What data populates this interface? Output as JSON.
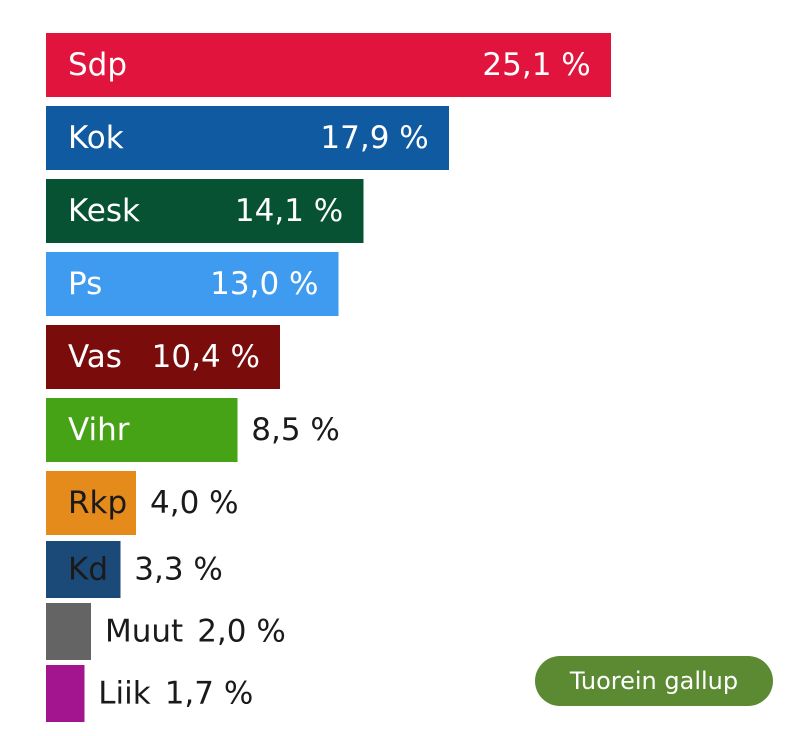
{
  "chart_data": {
    "type": "bar",
    "orientation": "horizontal",
    "categories": [
      "Sdp",
      "Kok",
      "Kesk",
      "Ps",
      "Vas",
      "Vihr",
      "Rkp",
      "Kd",
      "Muut",
      "Liik"
    ],
    "values": [
      25.1,
      17.9,
      14.1,
      13.0,
      10.4,
      8.5,
      4.0,
      3.3,
      2.0,
      1.7
    ],
    "value_labels": [
      "25,1 %",
      "17,9 %",
      "14,1 %",
      "13,0 %",
      "10,4 %",
      "8,5 %",
      "4,0 %",
      "3,3 %",
      "2,0 %",
      "1,7 %"
    ],
    "colors": [
      "#e0143c",
      "#0f5aa0",
      "#065233",
      "#3f9bf0",
      "#7a0c0c",
      "#46a316",
      "#e58b1c",
      "#1c4a78",
      "#646464",
      "#a3158e"
    ],
    "label_colors": [
      "#ffffff",
      "#ffffff",
      "#ffffff",
      "#ffffff",
      "#ffffff",
      "#ffffff",
      "#1a1a1a",
      "#1a1a1a",
      "#1a1a1a",
      "#1a1a1a"
    ],
    "title": "",
    "xlabel": "",
    "ylabel": "",
    "grid": false,
    "legend": "none"
  },
  "badge": {
    "label": "Tuorein gallup",
    "color": "#5b8a32"
  }
}
